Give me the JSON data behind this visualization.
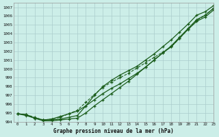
{
  "title": "Graphe pression niveau de la mer (hPa)",
  "bg_color": "#cceee8",
  "grid_color": "#aacccc",
  "line_color": "#1a5c1a",
  "xlim": [
    -0.5,
    23
  ],
  "ylim": [
    994,
    1007.5
  ],
  "xticks": [
    0,
    1,
    2,
    3,
    4,
    5,
    6,
    7,
    8,
    9,
    10,
    11,
    12,
    13,
    14,
    15,
    16,
    17,
    18,
    19,
    20,
    21,
    22,
    23
  ],
  "yticks": [
    994,
    995,
    996,
    997,
    998,
    999,
    1000,
    1001,
    1002,
    1003,
    1004,
    1005,
    1006,
    1007
  ],
  "series": [
    {
      "y": [
        994.9,
        994.8,
        994.4,
        994.2,
        994.2,
        994.3,
        994.5,
        994.7,
        995.8,
        997.0,
        998.0,
        998.7,
        999.3,
        999.8,
        1000.3,
        1001.0,
        1001.7,
        1002.5,
        1003.3,
        1004.2,
        1005.1,
        1006.1,
        1006.5,
        1007.2
      ],
      "marker": "+",
      "linestyle": "-",
      "lw": 0.9
    },
    {
      "y": [
        994.9,
        994.8,
        994.4,
        994.1,
        994.1,
        994.2,
        994.3,
        994.4,
        995.0,
        995.8,
        996.5,
        997.2,
        997.9,
        998.6,
        999.4,
        1000.2,
        1001.0,
        1001.8,
        1002.6,
        1003.6,
        1004.6,
        1005.6,
        1006.1,
        1006.9
      ],
      "marker": "+",
      "linestyle": "-",
      "lw": 0.9
    },
    {
      "y": [
        994.9,
        994.8,
        994.5,
        994.2,
        994.3,
        994.5,
        994.9,
        995.3,
        996.2,
        997.1,
        997.9,
        998.5,
        999.0,
        999.5,
        1000.1,
        1000.7,
        1001.3,
        1001.9,
        1002.5,
        1003.5,
        1004.5,
        1005.5,
        1006.1,
        1006.9
      ],
      "marker": "+",
      "linestyle": "--",
      "lw": 0.8
    },
    {
      "y": [
        994.9,
        994.7,
        994.4,
        994.2,
        994.3,
        994.6,
        994.9,
        995.2,
        995.8,
        996.5,
        997.2,
        997.8,
        998.3,
        998.9,
        999.5,
        1000.2,
        1001.0,
        1001.8,
        1002.5,
        1003.5,
        1004.5,
        1005.4,
        1005.9,
        1006.7
      ],
      "marker": "+",
      "linestyle": "-",
      "lw": 0.9
    }
  ]
}
